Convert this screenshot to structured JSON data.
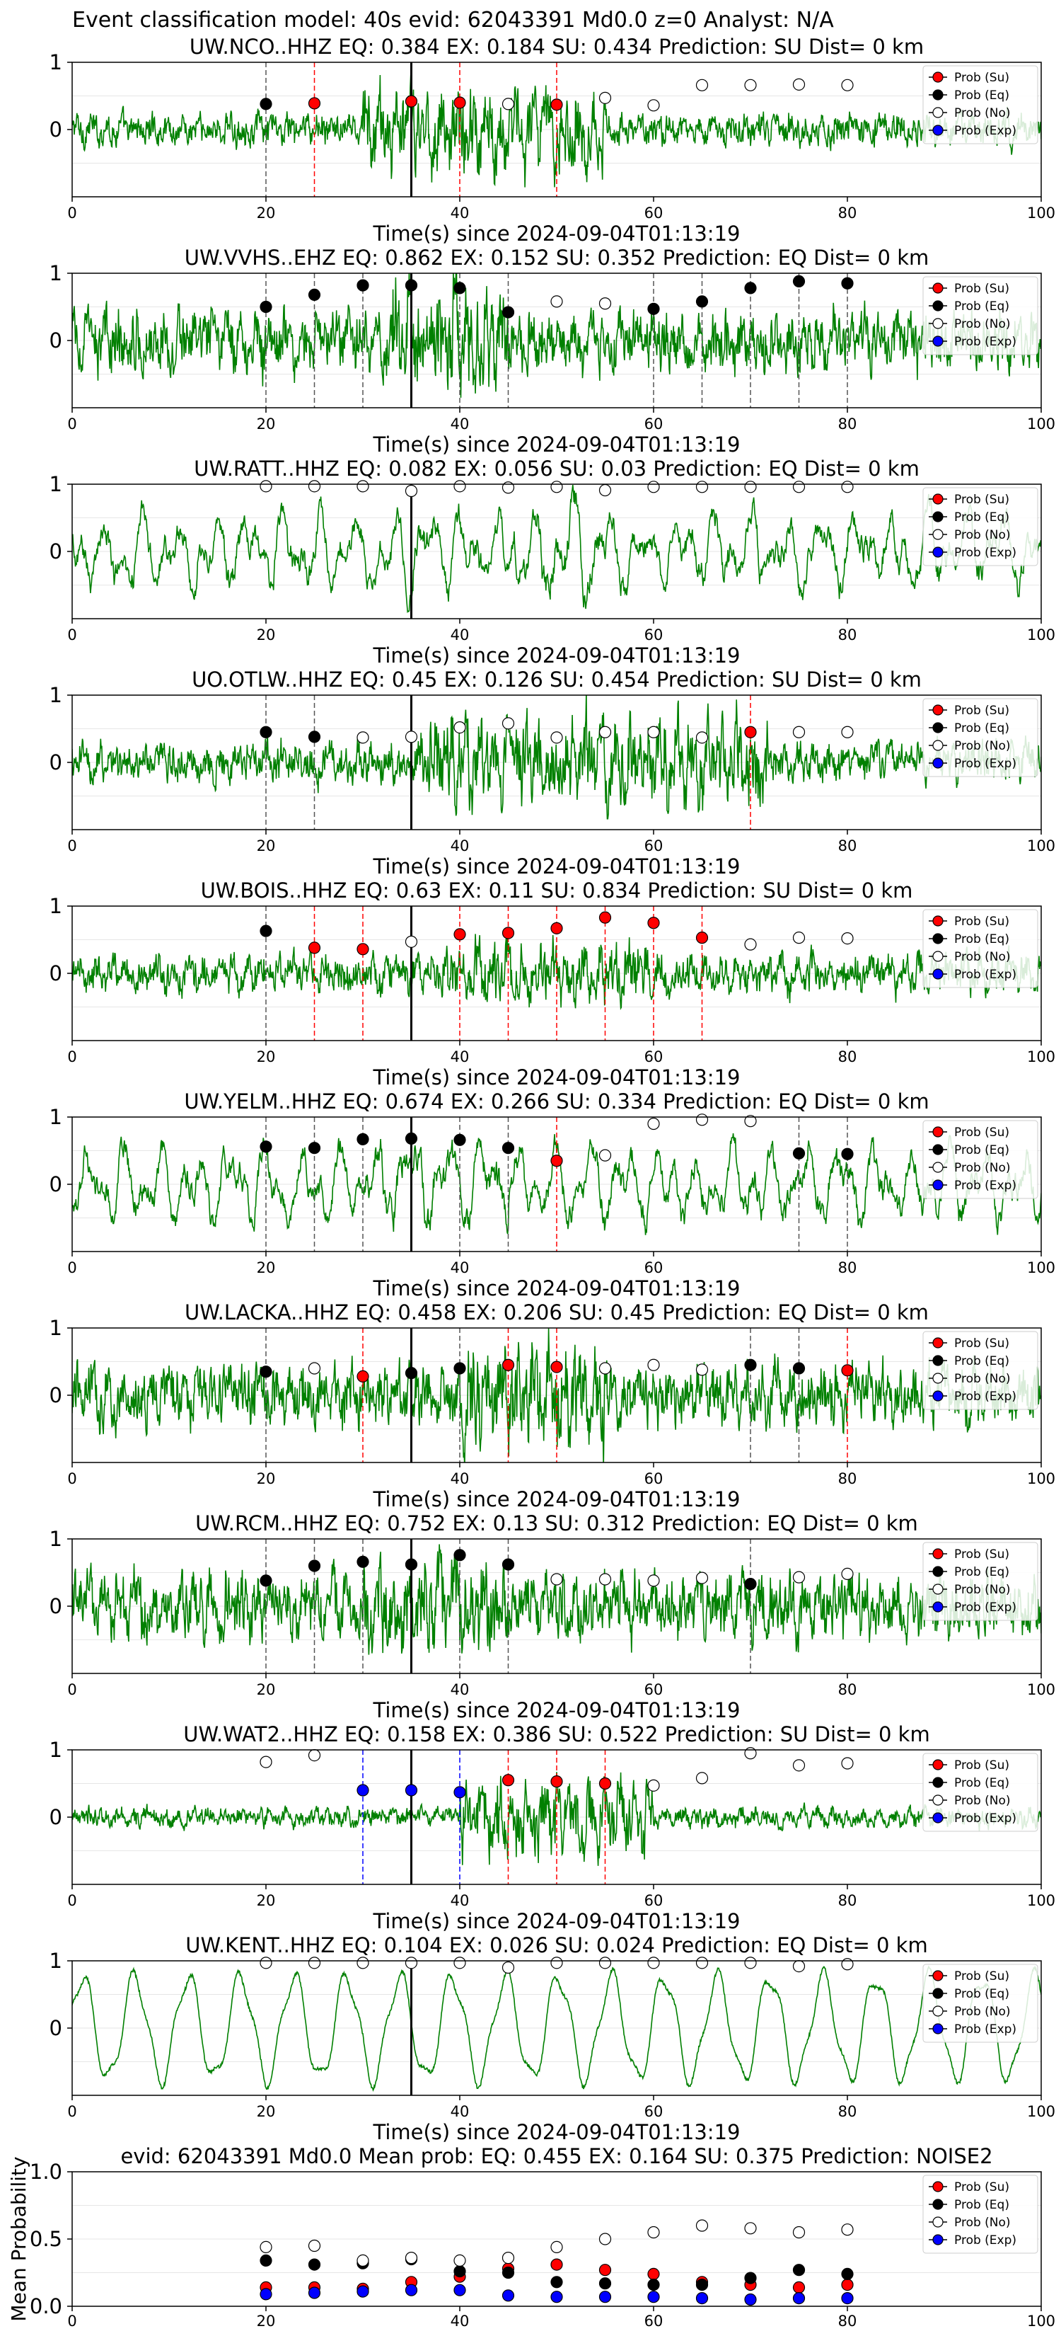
{
  "suptitle": "Event classification model: 40s evid: 62043391 Md0.0 z=0 Analyst: N/A",
  "xlabel_text": "Time(s) since 2024-09-04T01:13:19",
  "legend": {
    "su": "Prob (Su)",
    "eq": "Prob (Eq)",
    "no": "Prob (No)",
    "exp": "Prob (Exp)"
  },
  "colors": {
    "trace": "#008000",
    "su": "#ff0000",
    "eq": "#000000",
    "no": "#ffffff",
    "exp": "#0000ff"
  },
  "station_titles": [
    "UW.NCO..HHZ   EQ: 0.384  EX: 0.184  SU: 0.434   Prediction: SU    Dist= 0 km",
    "UW.VVHS..EHZ   EQ: 0.862  EX: 0.152  SU: 0.352   Prediction: EQ    Dist= 0 km",
    "UW.RATT..HHZ   EQ: 0.082  EX: 0.056  SU: 0.03   Prediction: EQ    Dist= 0 km",
    "UO.OTLW..HHZ   EQ: 0.45  EX: 0.126  SU: 0.454   Prediction: SU    Dist= 0 km",
    "UW.BOIS..HHZ   EQ: 0.63  EX: 0.11  SU: 0.834   Prediction: SU    Dist= 0 km",
    "UW.YELM..HHZ   EQ: 0.674  EX: 0.266  SU: 0.334   Prediction: EQ    Dist= 0 km",
    "UW.LACKA..HHZ   EQ: 0.458  EX: 0.206  SU: 0.45   Prediction: EQ    Dist= 0 km",
    "UW.RCM..HHZ   EQ: 0.752  EX: 0.13  SU: 0.312   Prediction: EQ    Dist= 0 km",
    "UW.WAT2..HHZ   EQ: 0.158  EX: 0.386  SU: 0.522   Prediction: SU    Dist= 0 km",
    "UW.KENT..HHZ   EQ: 0.104  EX: 0.026  SU: 0.024   Prediction: EQ    Dist= 0 km"
  ],
  "mean_title": "evid: 62043391  Md0.0   Mean prob:   EQ: 0.455  EX: 0.164  SU: 0.375   Prediction: NOISE2",
  "mean_ylabel": "Mean Probability",
  "chart_data": [
    {
      "type": "scatter",
      "station": "UW.NCO..HHZ",
      "xlim": [
        0,
        100
      ],
      "ylim": [
        -1,
        1
      ],
      "grid": true,
      "legend_position": "top-right",
      "pick_time": 35,
      "waveform": {
        "amplitude": 0.22,
        "character": "noisy",
        "burst_from": 30,
        "burst_to": 55,
        "burst_gain": 2.6
      },
      "windows": [
        {
          "t": 20,
          "p": 0.38,
          "c": "eq"
        },
        {
          "t": 25,
          "p": 0.39,
          "c": "su"
        },
        {
          "t": 35,
          "p": 0.42,
          "c": "su"
        },
        {
          "t": 40,
          "p": 0.4,
          "c": "su"
        },
        {
          "t": 45,
          "p": 0.38,
          "c": "no"
        },
        {
          "t": 50,
          "p": 0.37,
          "c": "su"
        },
        {
          "t": 55,
          "p": 0.47,
          "c": "no"
        },
        {
          "t": 60,
          "p": 0.36,
          "c": "no"
        },
        {
          "t": 65,
          "p": 0.66,
          "c": "no"
        },
        {
          "t": 70,
          "p": 0.66,
          "c": "no"
        },
        {
          "t": 75,
          "p": 0.67,
          "c": "no"
        },
        {
          "t": 80,
          "p": 0.66,
          "c": "no"
        }
      ]
    },
    {
      "type": "scatter",
      "station": "UW.VVHS..EHZ",
      "xlim": [
        0,
        100
      ],
      "ylim": [
        -1,
        1
      ],
      "grid": true,
      "legend_position": "top-right",
      "pick_time": 35,
      "waveform": {
        "amplitude": 0.42,
        "character": "noisy",
        "burst_from": 33,
        "burst_to": 45,
        "burst_gain": 1.8
      },
      "windows": [
        {
          "t": 20,
          "p": 0.5,
          "c": "eq"
        },
        {
          "t": 25,
          "p": 0.68,
          "c": "eq"
        },
        {
          "t": 30,
          "p": 0.82,
          "c": "eq"
        },
        {
          "t": 35,
          "p": 0.82,
          "c": "eq"
        },
        {
          "t": 40,
          "p": 0.78,
          "c": "eq"
        },
        {
          "t": 45,
          "p": 0.42,
          "c": "eq"
        },
        {
          "t": 50,
          "p": 0.58,
          "c": "no"
        },
        {
          "t": 55,
          "p": 0.55,
          "c": "no"
        },
        {
          "t": 60,
          "p": 0.47,
          "c": "eq"
        },
        {
          "t": 65,
          "p": 0.58,
          "c": "eq"
        },
        {
          "t": 70,
          "p": 0.78,
          "c": "eq"
        },
        {
          "t": 75,
          "p": 0.88,
          "c": "eq"
        },
        {
          "t": 80,
          "p": 0.85,
          "c": "eq"
        }
      ]
    },
    {
      "type": "scatter",
      "station": "UW.RATT..HHZ",
      "xlim": [
        0,
        100
      ],
      "ylim": [
        -1,
        1
      ],
      "grid": true,
      "legend_position": "top-right",
      "pick_time": 35,
      "waveform": {
        "amplitude": 0.5,
        "character": "smooth",
        "burst_from": 45,
        "burst_to": 55,
        "burst_gain": 1.3
      },
      "windows": [
        {
          "t": 20,
          "p": 0.97,
          "c": "no"
        },
        {
          "t": 25,
          "p": 0.97,
          "c": "no"
        },
        {
          "t": 30,
          "p": 0.97,
          "c": "no"
        },
        {
          "t": 35,
          "p": 0.9,
          "c": "no"
        },
        {
          "t": 40,
          "p": 0.97,
          "c": "no"
        },
        {
          "t": 45,
          "p": 0.95,
          "c": "no"
        },
        {
          "t": 50,
          "p": 0.96,
          "c": "no"
        },
        {
          "t": 55,
          "p": 0.91,
          "c": "no"
        },
        {
          "t": 60,
          "p": 0.96,
          "c": "no"
        },
        {
          "t": 65,
          "p": 0.96,
          "c": "no"
        },
        {
          "t": 70,
          "p": 0.96,
          "c": "no"
        },
        {
          "t": 75,
          "p": 0.96,
          "c": "no"
        },
        {
          "t": 80,
          "p": 0.96,
          "c": "no"
        }
      ]
    },
    {
      "type": "scatter",
      "station": "UO.OTLW..HHZ",
      "xlim": [
        0,
        100
      ],
      "ylim": [
        -1,
        1
      ],
      "grid": true,
      "legend_position": "top-right",
      "pick_time": 35,
      "waveform": {
        "amplitude": 0.28,
        "character": "noisy",
        "burst_from": 36,
        "burst_to": 72,
        "burst_gain": 2.2
      },
      "windows": [
        {
          "t": 20,
          "p": 0.45,
          "c": "eq"
        },
        {
          "t": 25,
          "p": 0.38,
          "c": "eq"
        },
        {
          "t": 30,
          "p": 0.37,
          "c": "no"
        },
        {
          "t": 35,
          "p": 0.38,
          "c": "no"
        },
        {
          "t": 40,
          "p": 0.52,
          "c": "no"
        },
        {
          "t": 45,
          "p": 0.58,
          "c": "no"
        },
        {
          "t": 50,
          "p": 0.37,
          "c": "no"
        },
        {
          "t": 55,
          "p": 0.45,
          "c": "no"
        },
        {
          "t": 60,
          "p": 0.45,
          "c": "no"
        },
        {
          "t": 65,
          "p": 0.37,
          "c": "no"
        },
        {
          "t": 70,
          "p": 0.45,
          "c": "su"
        },
        {
          "t": 75,
          "p": 0.45,
          "c": "no"
        },
        {
          "t": 80,
          "p": 0.45,
          "c": "no"
        }
      ]
    },
    {
      "type": "scatter",
      "station": "UW.BOIS..HHZ",
      "xlim": [
        0,
        100
      ],
      "ylim": [
        -1,
        1
      ],
      "grid": true,
      "legend_position": "top-right",
      "pick_time": 35,
      "waveform": {
        "amplitude": 0.26,
        "character": "noisy",
        "burst_from": 38,
        "burst_to": 60,
        "burst_gain": 1.6
      },
      "windows": [
        {
          "t": 20,
          "p": 0.63,
          "c": "eq"
        },
        {
          "t": 25,
          "p": 0.38,
          "c": "su"
        },
        {
          "t": 30,
          "p": 0.36,
          "c": "su"
        },
        {
          "t": 35,
          "p": 0.47,
          "c": "no"
        },
        {
          "t": 40,
          "p": 0.58,
          "c": "su"
        },
        {
          "t": 45,
          "p": 0.6,
          "c": "su"
        },
        {
          "t": 50,
          "p": 0.67,
          "c": "su"
        },
        {
          "t": 55,
          "p": 0.83,
          "c": "su"
        },
        {
          "t": 60,
          "p": 0.75,
          "c": "su"
        },
        {
          "t": 65,
          "p": 0.53,
          "c": "su"
        },
        {
          "t": 70,
          "p": 0.43,
          "c": "no"
        },
        {
          "t": 75,
          "p": 0.53,
          "c": "no"
        },
        {
          "t": 80,
          "p": 0.52,
          "c": "no"
        }
      ]
    },
    {
      "type": "scatter",
      "station": "UW.YELM..HHZ",
      "xlim": [
        0,
        100
      ],
      "ylim": [
        -1,
        1
      ],
      "grid": true,
      "legend_position": "top-right",
      "pick_time": 35,
      "waveform": {
        "amplitude": 0.5,
        "character": "smooth",
        "burst_from": 30,
        "burst_to": 45,
        "burst_gain": 1.3
      },
      "windows": [
        {
          "t": 20,
          "p": 0.56,
          "c": "eq"
        },
        {
          "t": 25,
          "p": 0.54,
          "c": "eq"
        },
        {
          "t": 30,
          "p": 0.67,
          "c": "eq"
        },
        {
          "t": 35,
          "p": 0.68,
          "c": "eq"
        },
        {
          "t": 40,
          "p": 0.66,
          "c": "eq"
        },
        {
          "t": 45,
          "p": 0.54,
          "c": "eq"
        },
        {
          "t": 50,
          "p": 0.35,
          "c": "su"
        },
        {
          "t": 55,
          "p": 0.43,
          "c": "no"
        },
        {
          "t": 60,
          "p": 0.9,
          "c": "no"
        },
        {
          "t": 65,
          "p": 0.96,
          "c": "no"
        },
        {
          "t": 70,
          "p": 0.94,
          "c": "no"
        },
        {
          "t": 75,
          "p": 0.46,
          "c": "eq"
        },
        {
          "t": 80,
          "p": 0.45,
          "c": "eq"
        }
      ]
    },
    {
      "type": "scatter",
      "station": "UW.LACKA..HHZ",
      "xlim": [
        0,
        100
      ],
      "ylim": [
        -1,
        1
      ],
      "grid": true,
      "legend_position": "top-right",
      "pick_time": 35,
      "waveform": {
        "amplitude": 0.42,
        "character": "noisy",
        "burst_from": 40,
        "burst_to": 55,
        "burst_gain": 1.7
      },
      "windows": [
        {
          "t": 20,
          "p": 0.35,
          "c": "eq"
        },
        {
          "t": 25,
          "p": 0.4,
          "c": "no"
        },
        {
          "t": 30,
          "p": 0.28,
          "c": "su"
        },
        {
          "t": 35,
          "p": 0.33,
          "c": "eq"
        },
        {
          "t": 40,
          "p": 0.4,
          "c": "eq"
        },
        {
          "t": 45,
          "p": 0.45,
          "c": "su"
        },
        {
          "t": 50,
          "p": 0.42,
          "c": "su"
        },
        {
          "t": 55,
          "p": 0.4,
          "c": "no"
        },
        {
          "t": 60,
          "p": 0.45,
          "c": "no"
        },
        {
          "t": 65,
          "p": 0.38,
          "c": "no"
        },
        {
          "t": 70,
          "p": 0.45,
          "c": "eq"
        },
        {
          "t": 75,
          "p": 0.4,
          "c": "eq"
        },
        {
          "t": 80,
          "p": 0.37,
          "c": "su"
        }
      ]
    },
    {
      "type": "scatter",
      "station": "UW.RCM..HHZ",
      "xlim": [
        0,
        100
      ],
      "ylim": [
        -1,
        1
      ],
      "grid": true,
      "legend_position": "top-right",
      "pick_time": 35,
      "waveform": {
        "amplitude": 0.45,
        "character": "noisy",
        "burst_from": 30,
        "burst_to": 45,
        "burst_gain": 1.5
      },
      "windows": [
        {
          "t": 20,
          "p": 0.38,
          "c": "eq"
        },
        {
          "t": 25,
          "p": 0.6,
          "c": "eq"
        },
        {
          "t": 30,
          "p": 0.66,
          "c": "eq"
        },
        {
          "t": 35,
          "p": 0.62,
          "c": "eq"
        },
        {
          "t": 40,
          "p": 0.76,
          "c": "eq"
        },
        {
          "t": 45,
          "p": 0.62,
          "c": "eq"
        },
        {
          "t": 50,
          "p": 0.4,
          "c": "no"
        },
        {
          "t": 55,
          "p": 0.4,
          "c": "no"
        },
        {
          "t": 60,
          "p": 0.38,
          "c": "no"
        },
        {
          "t": 65,
          "p": 0.42,
          "c": "no"
        },
        {
          "t": 70,
          "p": 0.33,
          "c": "eq"
        },
        {
          "t": 75,
          "p": 0.43,
          "c": "no"
        },
        {
          "t": 80,
          "p": 0.48,
          "c": "no"
        }
      ]
    },
    {
      "type": "scatter",
      "station": "UW.WAT2..HHZ",
      "xlim": [
        0,
        100
      ],
      "ylim": [
        -1,
        1
      ],
      "grid": true,
      "legend_position": "top-right",
      "pick_time": 35,
      "waveform": {
        "amplitude": 0.14,
        "character": "noisy",
        "burst_from": 40,
        "burst_to": 60,
        "burst_gain": 3.6
      },
      "windows": [
        {
          "t": 20,
          "p": 0.82,
          "c": "no"
        },
        {
          "t": 25,
          "p": 0.92,
          "c": "no"
        },
        {
          "t": 30,
          "p": 0.4,
          "c": "exp"
        },
        {
          "t": 35,
          "p": 0.4,
          "c": "exp"
        },
        {
          "t": 40,
          "p": 0.37,
          "c": "exp"
        },
        {
          "t": 45,
          "p": 0.55,
          "c": "su"
        },
        {
          "t": 50,
          "p": 0.53,
          "c": "su"
        },
        {
          "t": 55,
          "p": 0.5,
          "c": "su"
        },
        {
          "t": 60,
          "p": 0.47,
          "c": "no"
        },
        {
          "t": 65,
          "p": 0.58,
          "c": "no"
        },
        {
          "t": 70,
          "p": 0.95,
          "c": "no"
        },
        {
          "t": 75,
          "p": 0.77,
          "c": "no"
        },
        {
          "t": 80,
          "p": 0.8,
          "c": "no"
        }
      ]
    },
    {
      "type": "scatter",
      "station": "UW.KENT..HHZ",
      "xlim": [
        0,
        100
      ],
      "ylim": [
        -1,
        1
      ],
      "grid": true,
      "legend_position": "top-right",
      "pick_time": 35,
      "waveform": {
        "amplitude": 0.6,
        "character": "periodic",
        "burst_from": 0,
        "burst_to": 0,
        "burst_gain": 1.0
      },
      "windows": [
        {
          "t": 20,
          "p": 0.97,
          "c": "no"
        },
        {
          "t": 25,
          "p": 0.97,
          "c": "no"
        },
        {
          "t": 30,
          "p": 0.97,
          "c": "no"
        },
        {
          "t": 35,
          "p": 0.97,
          "c": "no"
        },
        {
          "t": 40,
          "p": 0.97,
          "c": "no"
        },
        {
          "t": 45,
          "p": 0.9,
          "c": "no"
        },
        {
          "t": 50,
          "p": 0.97,
          "c": "no"
        },
        {
          "t": 55,
          "p": 0.97,
          "c": "no"
        },
        {
          "t": 60,
          "p": 0.97,
          "c": "no"
        },
        {
          "t": 65,
          "p": 0.97,
          "c": "no"
        },
        {
          "t": 70,
          "p": 0.97,
          "c": "no"
        },
        {
          "t": 75,
          "p": 0.92,
          "c": "no"
        },
        {
          "t": 80,
          "p": 0.95,
          "c": "no"
        }
      ]
    },
    {
      "type": "scatter",
      "role": "mean",
      "xlim": [
        0,
        100
      ],
      "ylim": [
        0,
        1
      ],
      "grid": true,
      "legend_position": "top-right",
      "x": [
        20,
        25,
        30,
        35,
        40,
        45,
        50,
        55,
        60,
        65,
        70,
        75,
        80
      ],
      "series": [
        {
          "key": "su",
          "name": "Prob (Su)",
          "values": [
            0.14,
            0.14,
            0.13,
            0.18,
            0.22,
            0.28,
            0.31,
            0.27,
            0.24,
            0.18,
            0.16,
            0.14,
            0.16
          ]
        },
        {
          "key": "eq",
          "name": "Prob (Eq)",
          "values": [
            0.34,
            0.31,
            0.32,
            0.35,
            0.26,
            0.25,
            0.18,
            0.17,
            0.16,
            0.16,
            0.21,
            0.27,
            0.24
          ]
        },
        {
          "key": "no",
          "name": "Prob (No)",
          "values": [
            0.44,
            0.45,
            0.34,
            0.36,
            0.34,
            0.36,
            0.44,
            0.5,
            0.55,
            0.6,
            0.58,
            0.55,
            0.57
          ]
        },
        {
          "key": "exp",
          "name": "Prob (Exp)",
          "values": [
            0.09,
            0.1,
            0.11,
            0.12,
            0.12,
            0.08,
            0.07,
            0.07,
            0.07,
            0.06,
            0.05,
            0.06,
            0.06
          ]
        }
      ]
    }
  ]
}
